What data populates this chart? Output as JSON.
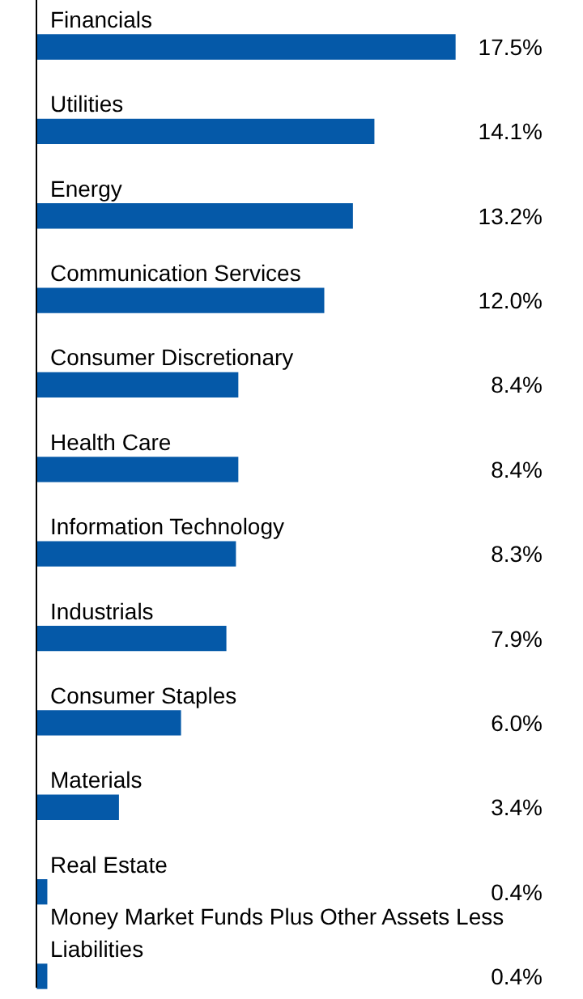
{
  "chart_data": {
    "type": "bar",
    "orientation": "horizontal",
    "categories": [
      "Financials",
      "Utilities",
      "Energy",
      "Communication Services",
      "Consumer Discretionary",
      "Health Care",
      "Information Technology",
      "Industrials",
      "Consumer Staples",
      "Materials",
      "Real Estate",
      "Money Market Funds Plus Other Assets Less Liabilities"
    ],
    "values": [
      17.5,
      14.1,
      13.2,
      12.0,
      8.4,
      8.4,
      8.3,
      7.9,
      6.0,
      3.4,
      0.4,
      0.4
    ],
    "value_labels": [
      "17.5%",
      "14.1%",
      "13.2%",
      "12.0%",
      "8.4%",
      "8.4%",
      "8.3%",
      "7.9%",
      "6.0%",
      "3.4%",
      "0.4%",
      "0.4%"
    ],
    "color": "#0559a8"
  }
}
